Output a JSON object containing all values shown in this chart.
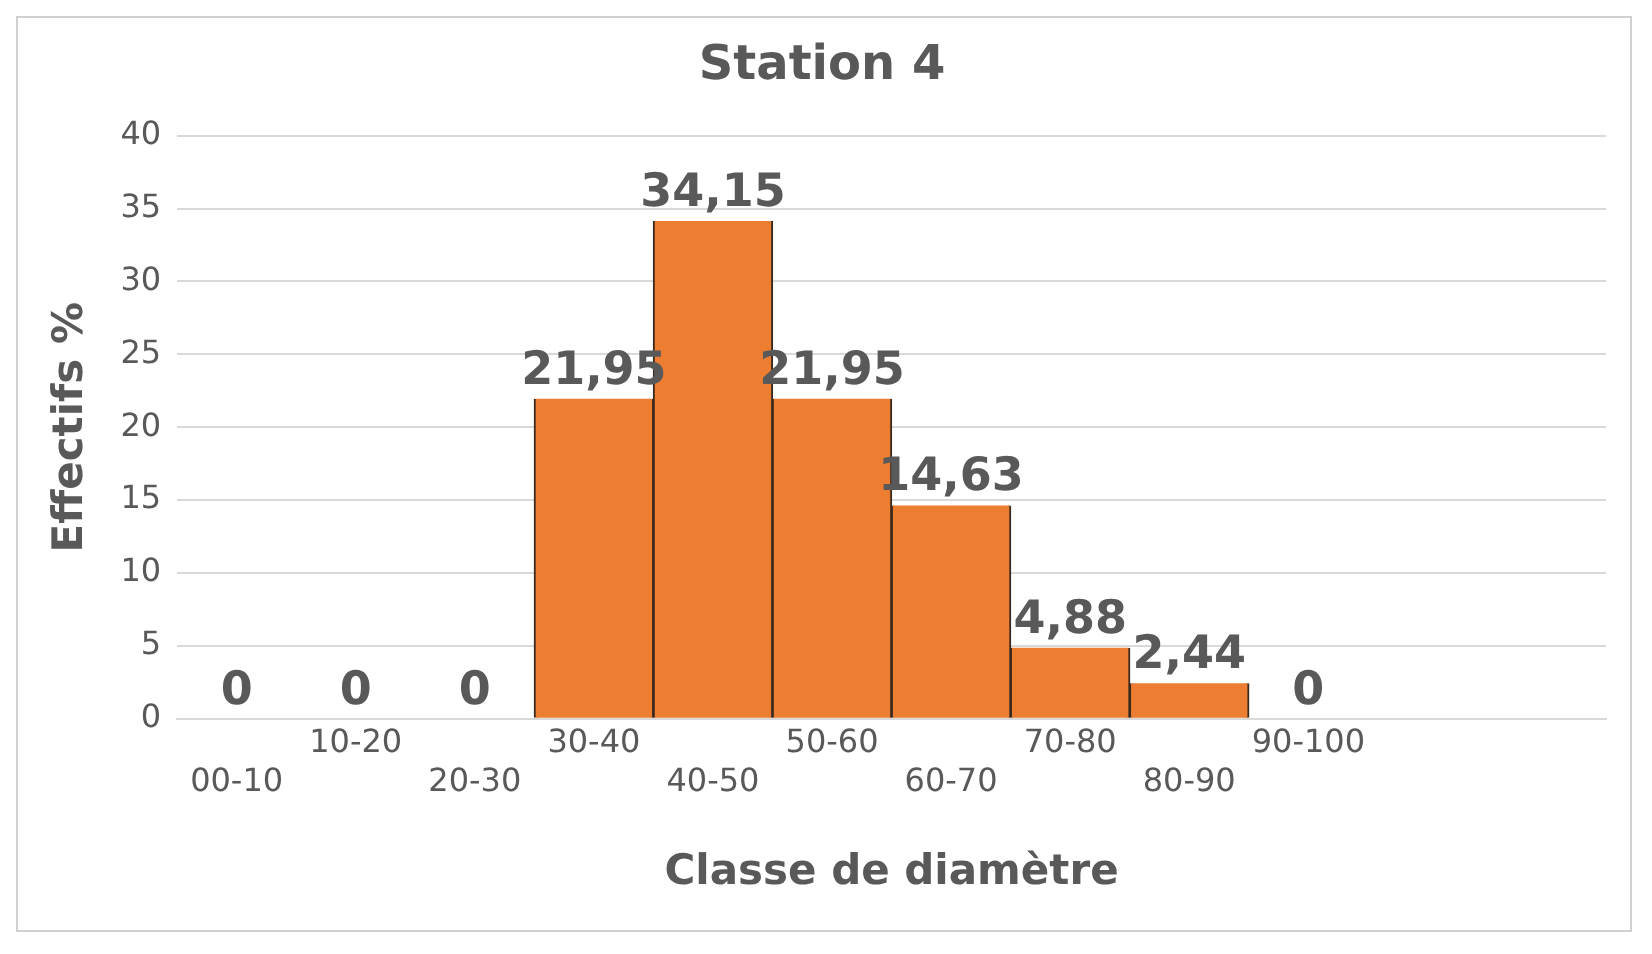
{
  "chart_data": {
    "type": "bar",
    "title": "Station 4",
    "xlabel": "Classe de diamètre",
    "ylabel": "Effectifs %",
    "categories": [
      "00-10",
      "10-20",
      "20-30",
      "30-40",
      "40-50",
      "50-60",
      "60-70",
      "70-80",
      "80-90",
      "90-100",
      null,
      null
    ],
    "values": [
      0,
      0,
      0,
      21.95,
      34.15,
      21.95,
      14.63,
      4.88,
      2.44,
      0,
      null,
      null
    ],
    "value_labels": [
      "0",
      "0",
      "0",
      "21,95",
      "34,15",
      "21,95",
      "14,63",
      "4,88",
      "2,44",
      "0",
      null,
      null
    ],
    "color": "#ed7d31",
    "ylim": [
      0,
      40
    ],
    "yticks": [
      0,
      5,
      10,
      15,
      20,
      25,
      30,
      35,
      40
    ],
    "grid": "y"
  }
}
